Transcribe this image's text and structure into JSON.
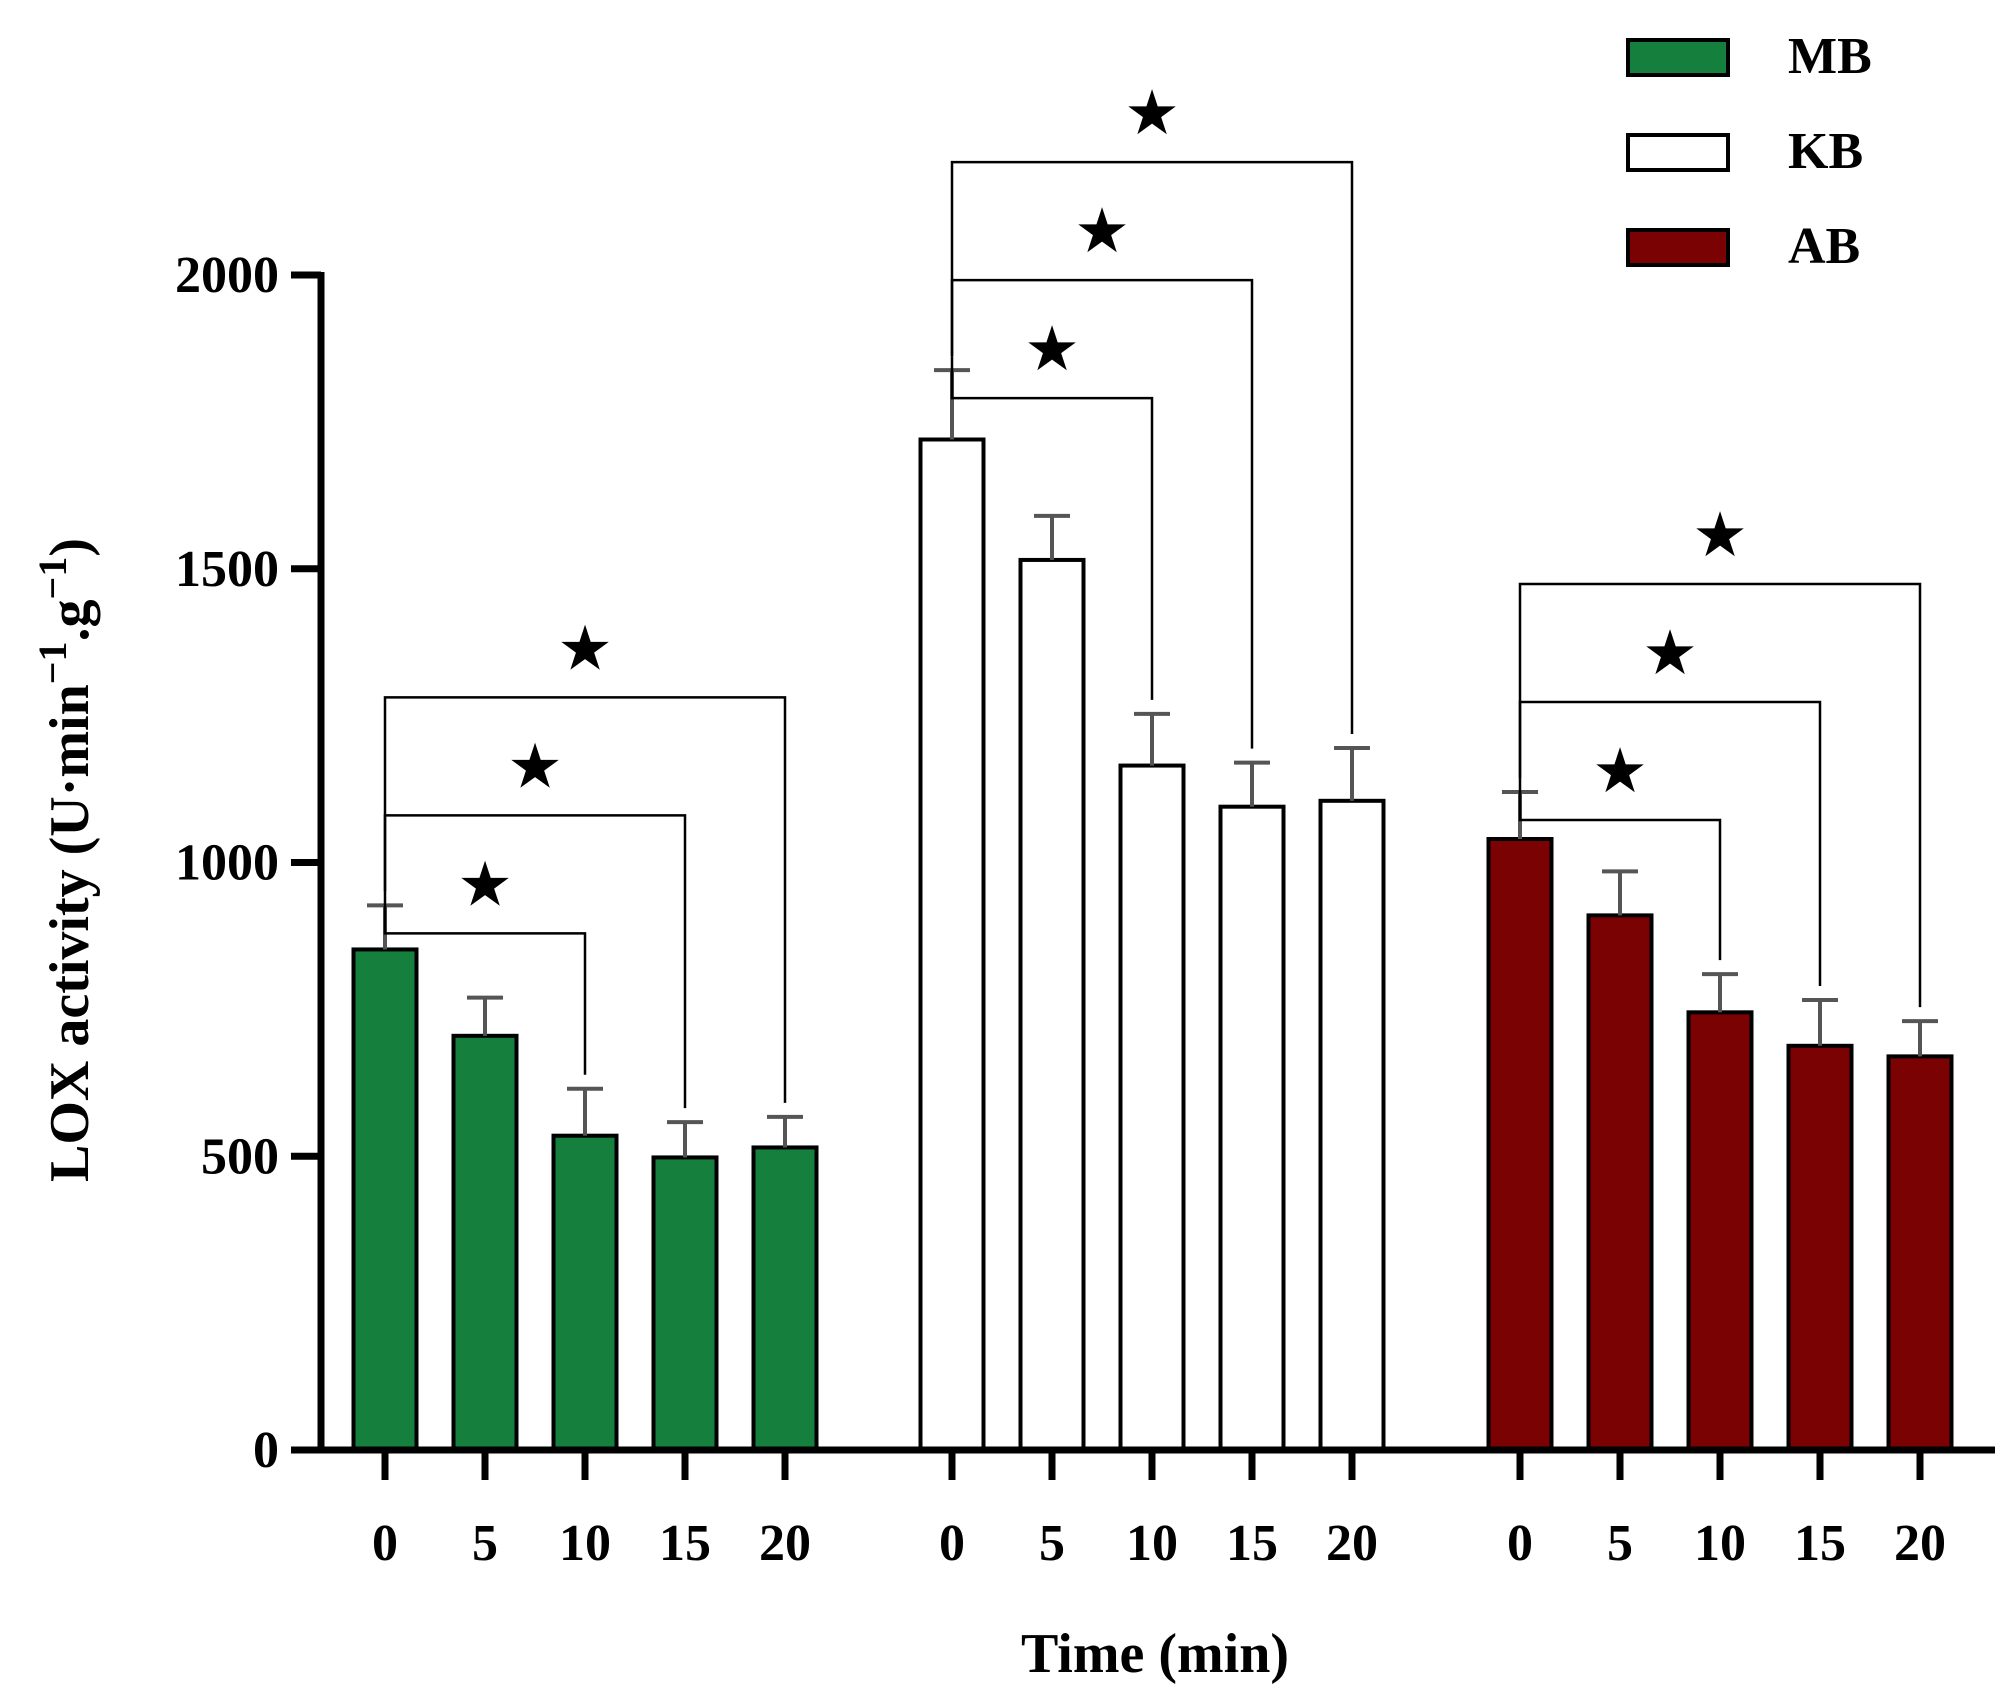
{
  "chart_data": {
    "type": "bar",
    "xlabel": "Time (min)",
    "ylabel_parts": {
      "prefix": "LOX activity (U·min",
      "sup1": "−1",
      "mid": ".g",
      "sup2": "−1",
      "suffix": ")"
    },
    "ylim": [
      0,
      2000
    ],
    "yticks": [
      0,
      500,
      1000,
      1500,
      2000
    ],
    "categories": [
      "0",
      "5",
      "10",
      "15",
      "20"
    ],
    "series": [
      {
        "name": "MB",
        "color": "#157f3e",
        "border": "#000000",
        "values": [
          852,
          705,
          535,
          498,
          515
        ],
        "errors": [
          75,
          65,
          80,
          60,
          52
        ]
      },
      {
        "name": "KB",
        "color": "#ffffff",
        "border": "#000000",
        "values": [
          1720,
          1515,
          1165,
          1095,
          1105
        ],
        "errors": [
          118,
          75,
          88,
          75,
          90
        ]
      },
      {
        "name": "AB",
        "color": "#7b0203",
        "border": "#000000",
        "values": [
          1040,
          910,
          745,
          688,
          670
        ],
        "errors": [
          80,
          75,
          65,
          78,
          60
        ]
      }
    ],
    "significance": [
      {
        "series": 0,
        "from": 0,
        "to": 2,
        "mark": "★"
      },
      {
        "series": 0,
        "from": 0,
        "to": 3,
        "mark": "★"
      },
      {
        "series": 0,
        "from": 0,
        "to": 4,
        "mark": "★"
      },
      {
        "series": 1,
        "from": 0,
        "to": 2,
        "mark": "★"
      },
      {
        "series": 1,
        "from": 0,
        "to": 3,
        "mark": "★"
      },
      {
        "series": 1,
        "from": 0,
        "to": 4,
        "mark": "★"
      },
      {
        "series": 2,
        "from": 0,
        "to": 2,
        "mark": "★"
      },
      {
        "series": 2,
        "from": 0,
        "to": 3,
        "mark": "★"
      },
      {
        "series": 2,
        "from": 0,
        "to": 4,
        "mark": "★"
      }
    ],
    "legend": {
      "position": "top-right",
      "entries": [
        "MB",
        "KB",
        "AB"
      ]
    }
  }
}
